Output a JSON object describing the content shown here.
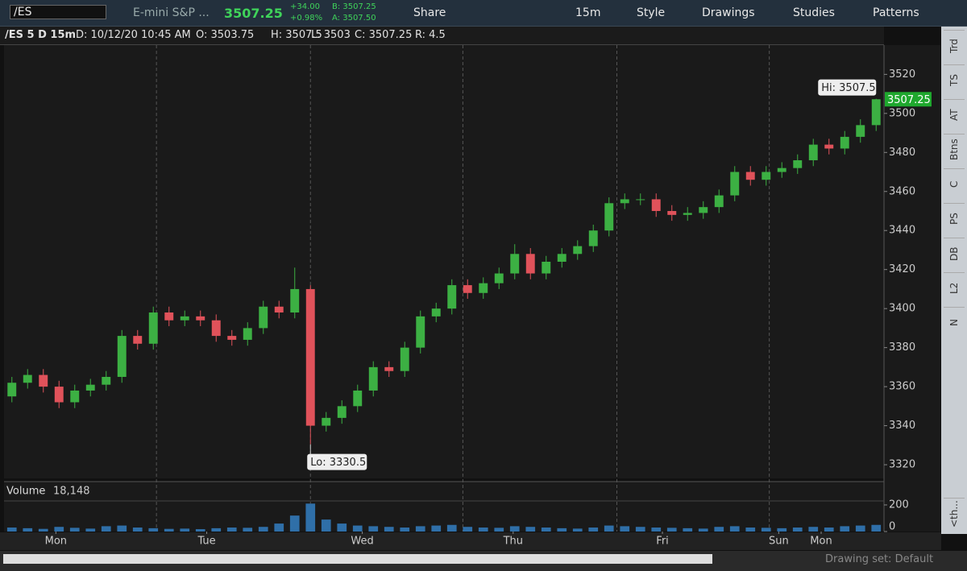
{
  "toolbar": {
    "symbol": "/ES",
    "description": "E-mini S&P ...",
    "last": "3507.25",
    "change": "+34.00",
    "change_pct": "+0.98%",
    "bid": "B: 3507.25",
    "ask": "A: 3507.50",
    "buttons": [
      "Share",
      "15m",
      "Style",
      "Drawings",
      "Studies",
      "Patterns"
    ]
  },
  "info_bar": [
    "/ES 5 D 15m",
    "D: 10/12/20 10:45 AM",
    "O: 3503.75",
    "H: 3507.5",
    "L: 3503",
    "C: 3507.25",
    "R: 4.5"
  ],
  "side_tabs": [
    "Trd",
    "TS",
    "AT",
    "Btns",
    "C",
    "PS",
    "DB",
    "L2",
    "N",
    "<th..."
  ],
  "status": "Drawing set: Default",
  "chart_data": {
    "type": "candlestick",
    "up_color": "#3cb043",
    "down_color": "#e0525a",
    "grid": false,
    "xlim": [
      0,
      56
    ],
    "xticks": [
      {
        "value": 3.3,
        "label": "Mon"
      },
      {
        "value": 12.9,
        "label": "Tue"
      },
      {
        "value": 22.8,
        "label": "Wed"
      },
      {
        "value": 32.4,
        "label": "Thu"
      },
      {
        "value": 41.9,
        "label": "Fri"
      },
      {
        "value": 49.3,
        "label": "Sun"
      },
      {
        "value": 52,
        "label": "Mon"
      }
    ],
    "day_separators": [
      9.7,
      19.5,
      29.2,
      39,
      48.7
    ],
    "ylim": [
      3313,
      3535
    ],
    "yticks": [
      3320,
      3340,
      3360,
      3380,
      3400,
      3420,
      3440,
      3460,
      3480,
      3500,
      3520
    ],
    "open": [
      3355,
      3362,
      3366,
      3360,
      3352,
      3358,
      3361,
      3365,
      3386,
      3382,
      3398,
      3394,
      3396,
      3394,
      3386,
      3384,
      3390,
      3401,
      3398,
      3410,
      3340,
      3344,
      3350,
      3358,
      3370,
      3368,
      3380,
      3396,
      3400,
      3412,
      3408,
      3413,
      3418,
      3428,
      3418,
      3424,
      3428,
      3432,
      3440,
      3454,
      3456,
      3456,
      3450,
      3448,
      3449,
      3452,
      3458,
      3470,
      3466,
      3470,
      3472,
      3476,
      3484,
      3482,
      3488,
      3494
    ],
    "high": [
      3365,
      3369,
      3369,
      3363,
      3361,
      3364,
      3368,
      3389,
      3389,
      3401,
      3401,
      3399,
      3399,
      3397,
      3389,
      3393,
      3404,
      3404,
      3421,
      3412,
      3347,
      3353,
      3361,
      3373,
      3373,
      3383,
      3399,
      3403,
      3415,
      3415,
      3416,
      3421,
      3433,
      3431,
      3427,
      3431,
      3435,
      3443,
      3457,
      3459,
      3459,
      3459,
      3453,
      3452,
      3455,
      3461,
      3473,
      3473,
      3473,
      3475,
      3479,
      3487,
      3487,
      3491,
      3497,
      3507.5
    ],
    "low": [
      3352,
      3359,
      3357,
      3349,
      3349,
      3355,
      3358,
      3362,
      3379,
      3379,
      3391,
      3391,
      3391,
      3383,
      3381,
      3381,
      3387,
      3395,
      3395,
      3330.5,
      3337,
      3341,
      3347,
      3355,
      3365,
      3365,
      3377,
      3393,
      3397,
      3405,
      3405,
      3410,
      3415,
      3415,
      3415,
      3421,
      3425,
      3429,
      3437,
      3451,
      3453,
      3447,
      3445,
      3445,
      3446,
      3449,
      3455,
      3463,
      3463,
      3467,
      3469,
      3473,
      3479,
      3479,
      3485,
      3491
    ],
    "close": [
      3362,
      3366,
      3360,
      3352,
      3358,
      3361,
      3365,
      3386,
      3382,
      3398,
      3394,
      3396,
      3394,
      3386,
      3384,
      3390,
      3401,
      3398,
      3410,
      3340,
      3344,
      3350,
      3358,
      3370,
      3368,
      3380,
      3396,
      3400,
      3412,
      3408,
      3413,
      3418,
      3428,
      3418,
      3424,
      3428,
      3432,
      3440,
      3454,
      3456,
      3456,
      3450,
      3448,
      3449,
      3452,
      3458,
      3470,
      3466,
      3470,
      3472,
      3476,
      3484,
      3482,
      3488,
      3494,
      3507.25
    ],
    "high_label": "Hi: 3507.5",
    "low_label": "Lo: 3330.5",
    "last_label": "3507.25",
    "volume_title": "Volume",
    "volume_last": "18,148",
    "volume_color": "#2f6fa8",
    "volume_ylim": [
      0,
      230
    ],
    "volume_yticks": [
      0,
      200
    ],
    "volume": [
      30,
      25,
      20,
      35,
      28,
      22,
      40,
      45,
      30,
      25,
      20,
      22,
      18,
      25,
      30,
      28,
      35,
      60,
      120,
      210,
      90,
      60,
      45,
      40,
      35,
      30,
      40,
      45,
      50,
      35,
      30,
      28,
      40,
      35,
      30,
      25,
      22,
      30,
      45,
      40,
      35,
      30,
      28,
      25,
      22,
      35,
      40,
      30,
      28,
      25,
      30,
      35,
      30,
      40,
      45,
      50
    ]
  }
}
